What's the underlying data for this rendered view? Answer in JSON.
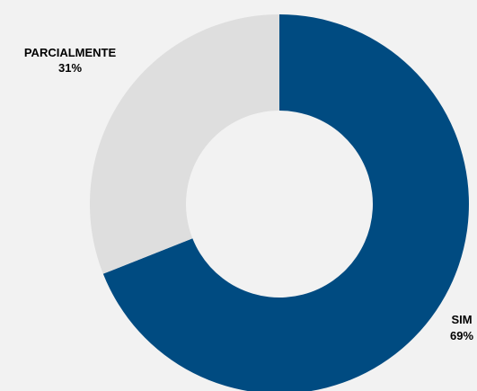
{
  "chart_data": {
    "type": "pie",
    "variant": "donut",
    "title": "",
    "categories": [
      "SIM",
      "PARCIALMENTE"
    ],
    "values": [
      69,
      31
    ],
    "unit": "%",
    "labels": [
      {
        "category": "SIM",
        "value_text": "69%"
      },
      {
        "category": "PARCIALMENTE",
        "value_text": "31%"
      }
    ],
    "colors": [
      "#004b81",
      "#dedede"
    ],
    "start_angle_deg": 0,
    "direction": "clockwise",
    "legend": "none"
  },
  "background_color": "#f2f2f2"
}
